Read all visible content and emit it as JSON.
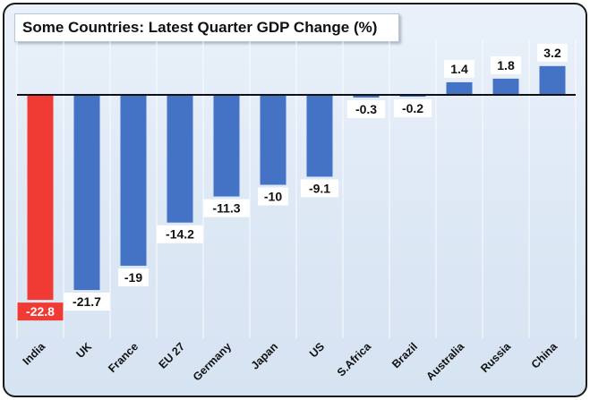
{
  "chart_data": {
    "type": "bar",
    "title": "Some Countries: Latest Quarter GDP Change (%)",
    "categories": [
      "India",
      "UK",
      "France",
      "EU 27",
      "Germany",
      "Japan",
      "US",
      "S.Africa",
      "Brazil",
      "Australia",
      "Russia",
      "China"
    ],
    "values": [
      -22.8,
      -21.7,
      -19,
      -14.2,
      -11.3,
      -10,
      -9.1,
      -0.3,
      -0.2,
      1.4,
      1.8,
      3.2
    ],
    "labels": [
      "-22.8",
      "-21.7",
      "-19",
      "-14.2",
      "-11.3",
      "-10",
      "-9.1",
      "-0.3",
      "-0.2",
      "1.4",
      "1.8",
      "3.2"
    ],
    "highlight_index": 0,
    "ylim": [
      -24,
      5
    ],
    "grid": "vertical",
    "colors": {
      "bar": "#4472c4",
      "highlight": "#f03b34",
      "axis": "#111111"
    }
  }
}
